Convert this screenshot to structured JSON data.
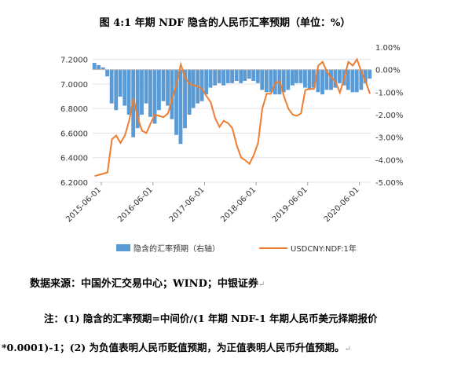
{
  "title": "图 4:1 年期 NDF 隐含的人民币汇率预期（单位：%）",
  "source": "数据来源：中国外汇交易中心；WIND；中银证券",
  "note_line1": "注：(1) 隐含的汇率预期=中间价/(1 年期 NDF-1 年期人民币美元择期报价",
  "note_line2": "*0.0001)-1；(2) 为负值表明人民币贬值预期，为正值表明人民币升值预期。",
  "colors": {
    "bar": "#5b9bd5",
    "line": "#ed7d31"
  },
  "chart_data": {
    "type": "bar+line",
    "x_tick_labels": [
      "2015-06-01",
      "2016-06-01",
      "2017-06-01",
      "2018-06-01",
      "2019-06-01",
      "2020-06-01"
    ],
    "left_axis": {
      "ticks": [
        "6.2000",
        "6.4000",
        "6.6000",
        "6.8000",
        "7.0000",
        "7.2000"
      ],
      "ylim": [
        6.2,
        7.3
      ]
    },
    "right_axis": {
      "ticks": [
        "-5.00%",
        "-4.00%",
        "-3.00%",
        "-2.00%",
        "-1.00%",
        "0.00%",
        "1.00%"
      ],
      "ylim": [
        -5.0,
        1.0
      ]
    },
    "legend_position": "bottom",
    "series": [
      {
        "name": "隐含的汇率预期（右轴）",
        "type": "bar",
        "axis": "right",
        "x": [
          "2015-04",
          "2015-05",
          "2015-06",
          "2015-07",
          "2015-08",
          "2015-09",
          "2015-10",
          "2015-11",
          "2015-12",
          "2016-01",
          "2016-02",
          "2016-03",
          "2016-04",
          "2016-05",
          "2016-06",
          "2016-07",
          "2016-08",
          "2016-09",
          "2016-10",
          "2016-11",
          "2016-12",
          "2017-01",
          "2017-02",
          "2017-03",
          "2017-04",
          "2017-05",
          "2017-06",
          "2017-07",
          "2017-08",
          "2017-09",
          "2017-10",
          "2017-11",
          "2017-12",
          "2018-01",
          "2018-02",
          "2018-03",
          "2018-04",
          "2018-05",
          "2018-06",
          "2018-07",
          "2018-08",
          "2018-09",
          "2018-10",
          "2018-11",
          "2018-12",
          "2019-01",
          "2019-02",
          "2019-03",
          "2019-04",
          "2019-05",
          "2019-06",
          "2019-07",
          "2019-08",
          "2019-09",
          "2019-10",
          "2019-11",
          "2019-12",
          "2020-01",
          "2020-02",
          "2020-03",
          "2020-04",
          "2020-05",
          "2020-06",
          "2020-07",
          "2020-08"
        ],
        "values": [
          0.3,
          0.2,
          0.1,
          -0.3,
          -1.5,
          -1.8,
          -1.2,
          -1.6,
          -2.0,
          -3.0,
          -2.6,
          -2.0,
          -1.5,
          -2.1,
          -2.4,
          -1.8,
          -1.4,
          -1.6,
          -2.2,
          -2.9,
          -3.3,
          -2.6,
          -2.0,
          -1.7,
          -1.5,
          -1.4,
          -1.1,
          -0.8,
          -0.7,
          -0.6,
          -0.7,
          -0.6,
          -0.6,
          -0.5,
          -0.6,
          -0.5,
          -0.4,
          -0.5,
          -0.6,
          -0.9,
          -1.0,
          -1.0,
          -1.1,
          -1.1,
          -1.0,
          -0.9,
          -0.7,
          -0.6,
          -0.6,
          -0.8,
          -0.9,
          -0.8,
          -1.0,
          -1.1,
          -0.9,
          -0.9,
          -0.8,
          -0.6,
          -0.7,
          -0.9,
          -1.0,
          -1.0,
          -0.9,
          -0.6,
          -0.4
        ]
      },
      {
        "name": "USDCNY:NDF:1年",
        "type": "line",
        "axis": "left",
        "x": [
          "2015-04",
          "2015-05",
          "2015-06",
          "2015-07",
          "2015-08",
          "2015-09",
          "2015-10",
          "2015-11",
          "2015-12",
          "2016-01",
          "2016-02",
          "2016-03",
          "2016-04",
          "2016-05",
          "2016-06",
          "2016-07",
          "2016-08",
          "2016-09",
          "2016-10",
          "2016-11",
          "2016-12",
          "2017-01",
          "2017-02",
          "2017-03",
          "2017-04",
          "2017-05",
          "2017-06",
          "2017-07",
          "2017-08",
          "2017-09",
          "2017-10",
          "2017-11",
          "2017-12",
          "2018-01",
          "2018-02",
          "2018-03",
          "2018-04",
          "2018-05",
          "2018-06",
          "2018-07",
          "2018-08",
          "2018-09",
          "2018-10",
          "2018-11",
          "2018-12",
          "2019-01",
          "2019-02",
          "2019-03",
          "2019-04",
          "2019-05",
          "2019-06",
          "2019-07",
          "2019-08",
          "2019-09",
          "2019-10",
          "2019-11",
          "2019-12",
          "2020-01",
          "2020-02",
          "2020-03",
          "2020-04",
          "2020-05",
          "2020-06",
          "2020-07",
          "2020-08"
        ],
        "values": [
          6.25,
          6.26,
          6.27,
          6.28,
          6.55,
          6.58,
          6.52,
          6.58,
          6.7,
          6.88,
          6.72,
          6.62,
          6.6,
          6.68,
          6.75,
          6.74,
          6.73,
          6.76,
          6.88,
          7.0,
          7.16,
          7.05,
          7.0,
          6.99,
          6.98,
          6.96,
          6.9,
          6.85,
          6.72,
          6.65,
          6.7,
          6.68,
          6.64,
          6.5,
          6.4,
          6.38,
          6.35,
          6.42,
          6.52,
          6.8,
          6.92,
          6.92,
          7.01,
          7.02,
          6.9,
          6.8,
          6.75,
          6.74,
          6.76,
          6.95,
          6.96,
          6.96,
          7.15,
          7.18,
          7.1,
          7.05,
          7.02,
          6.93,
          7.05,
          7.18,
          7.15,
          7.2,
          7.1,
          7.02,
          6.92
        ]
      }
    ]
  }
}
